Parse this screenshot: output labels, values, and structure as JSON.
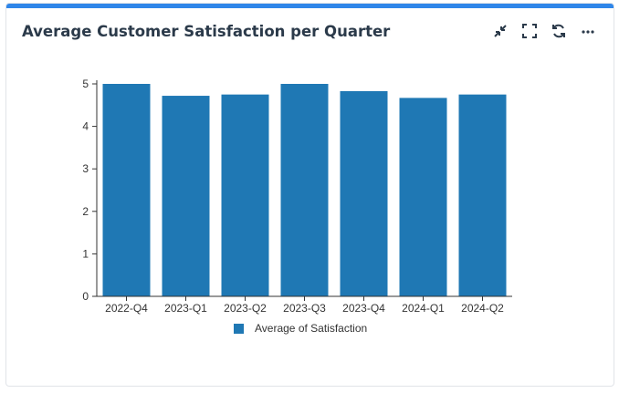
{
  "card": {
    "title": "Average Customer Satisfaction per Quarter",
    "accent_color": "#2f86e9"
  },
  "toolbar": {
    "icons": [
      "collapse-icon",
      "fullscreen-icon",
      "refresh-icon",
      "more-icon"
    ]
  },
  "chart_data": {
    "type": "bar",
    "categories": [
      "2022-Q4",
      "2023-Q1",
      "2023-Q2",
      "2023-Q3",
      "2023-Q4",
      "2024-Q1",
      "2024-Q2"
    ],
    "series": [
      {
        "name": "Average of Satisfaction",
        "values": [
          5.0,
          4.72,
          4.75,
          5.0,
          4.83,
          4.67,
          4.75
        ],
        "color": "#1f78b4"
      }
    ],
    "yticks": [
      0,
      1,
      2,
      3,
      4,
      5
    ],
    "ylim": [
      0,
      5
    ],
    "legend_position": "bottom",
    "grid": false
  }
}
